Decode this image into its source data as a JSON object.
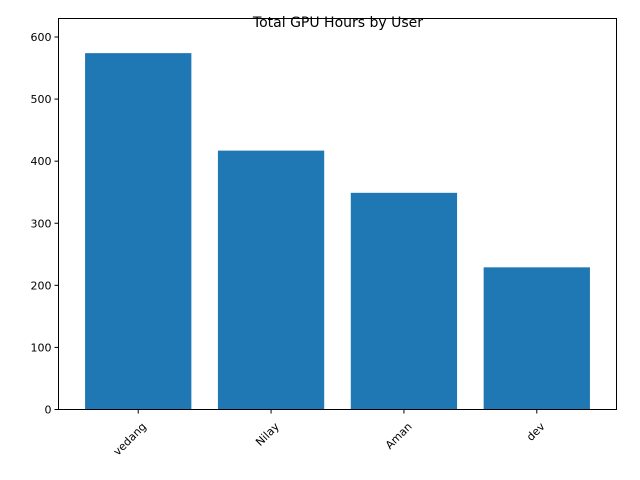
{
  "chart_data": {
    "type": "bar",
    "title": "Total GPU Hours by User",
    "xlabel": "",
    "ylabel": "",
    "categories": [
      "vedang",
      "Nilay",
      "Aman",
      "dev"
    ],
    "values": [
      574,
      417,
      349,
      229
    ],
    "ylim": [
      0,
      600
    ],
    "yticks": [
      0,
      100,
      200,
      300,
      400,
      500,
      600
    ],
    "grid": false,
    "bar_color": "#1f77b4",
    "xtick_rotation_deg": 45
  }
}
